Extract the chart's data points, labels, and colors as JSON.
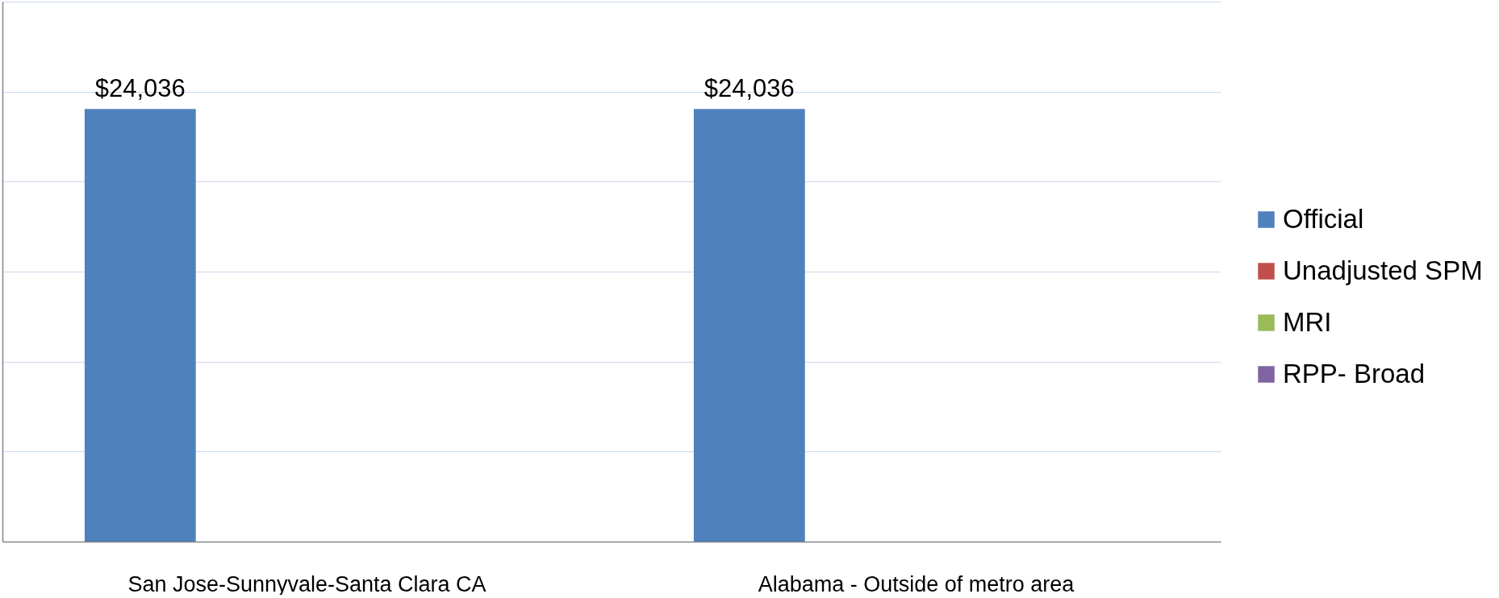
{
  "chart_data": {
    "type": "bar",
    "categories": [
      "San Jose-Sunnyvale-Santa Clara CA",
      "Alabama - Outside of metro area"
    ],
    "series": [
      {
        "name": "Official",
        "color": "#4f81bd",
        "values": [
          24036,
          24036
        ],
        "value_labels": [
          "$24,036",
          "$24,036"
        ]
      },
      {
        "name": "Unadjusted SPM",
        "color": "#c0504d",
        "values": [
          null,
          null
        ]
      },
      {
        "name": "MRI",
        "color": "#9bbb59",
        "values": [
          null,
          null
        ]
      },
      {
        "name": "RPP- Broad",
        "color": "#8064a2",
        "values": [
          null,
          null
        ]
      }
    ],
    "ylim": [
      0,
      30000
    ],
    "yticks": [
      {
        "value": 0,
        "label": null
      },
      {
        "value": 5000,
        "label": null
      },
      {
        "value": 10000,
        "label": null
      },
      {
        "value": 15000,
        "label": null
      },
      {
        "value": 20000,
        "label": null
      },
      {
        "value": 25000,
        "label": null
      },
      {
        "value": 30000,
        "label": null
      }
    ],
    "grid": "y",
    "legend": "right",
    "tick_labels": "x"
  }
}
